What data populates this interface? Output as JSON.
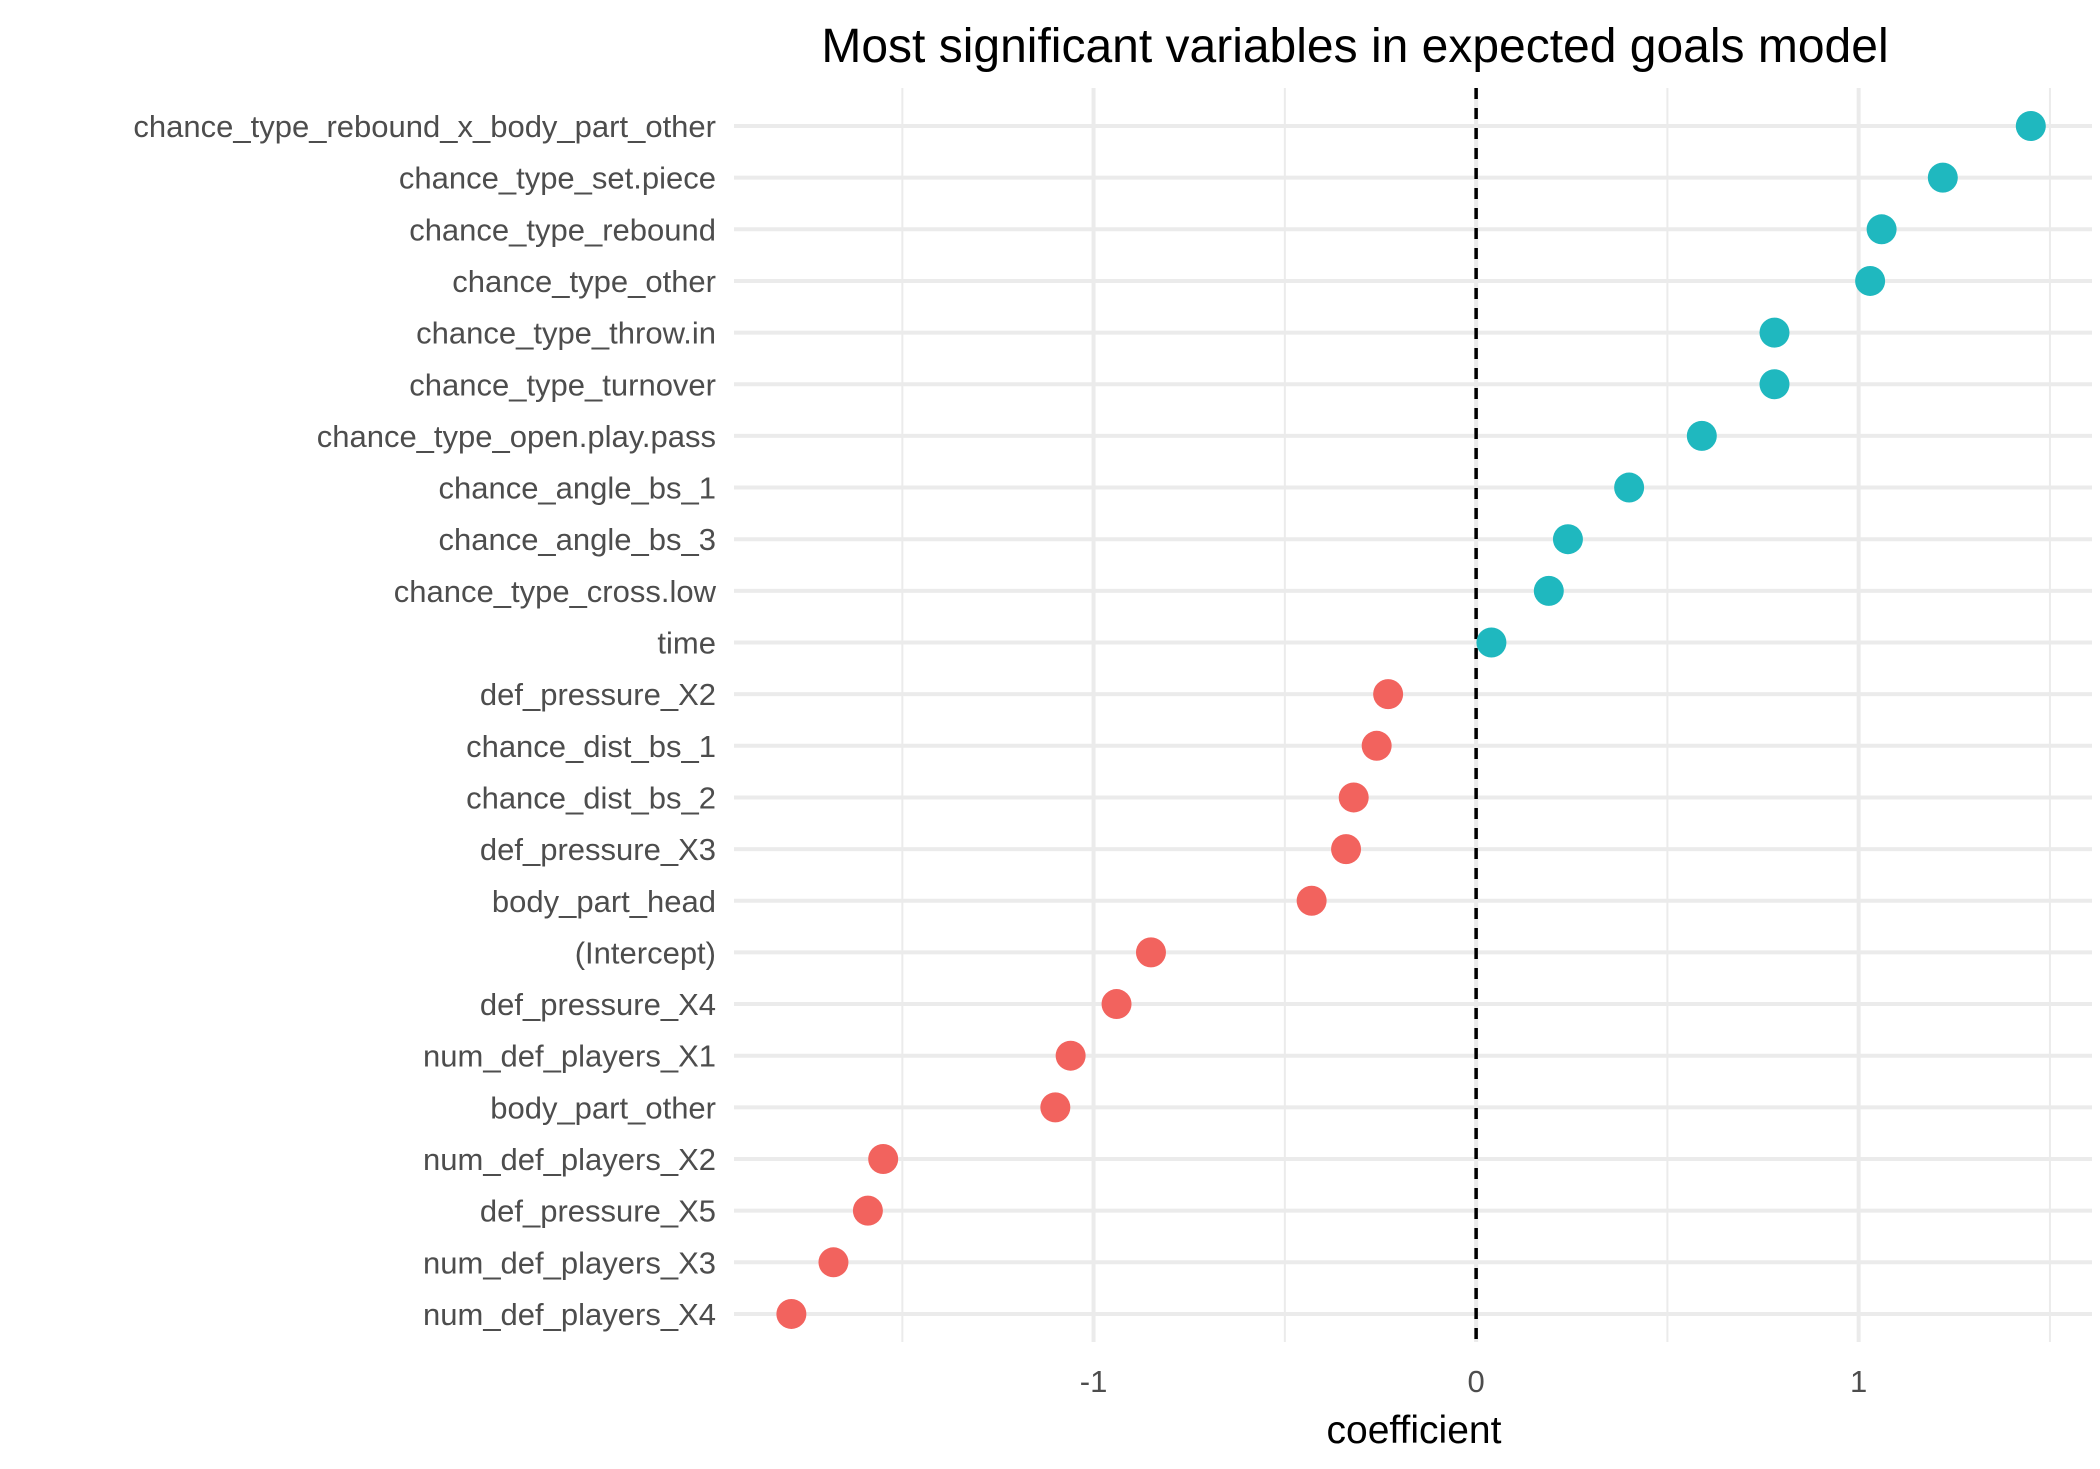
{
  "chart_data": {
    "type": "scatter",
    "title": "Most significant variables in expected goals model",
    "xlabel": "coefficient",
    "ylabel": "",
    "xlim": [
      -1.94,
      1.61
    ],
    "x_ticks": [
      -1,
      0,
      1
    ],
    "x_tick_labels": [
      "-1",
      "0",
      "1"
    ],
    "reference_line": {
      "x": 0,
      "style": "dashed"
    },
    "grid": true,
    "legend": "none",
    "colors": {
      "positive": "#1fb8bf",
      "negative": "#f2635e"
    },
    "points": [
      {
        "label": "chance_type_rebound_x_body_part_other",
        "value": 1.45
      },
      {
        "label": "chance_type_set.piece",
        "value": 1.22
      },
      {
        "label": "chance_type_rebound",
        "value": 1.06
      },
      {
        "label": "chance_type_other",
        "value": 1.03
      },
      {
        "label": "chance_type_throw.in",
        "value": 0.78
      },
      {
        "label": "chance_type_turnover",
        "value": 0.78
      },
      {
        "label": "chance_type_open.play.pass",
        "value": 0.59
      },
      {
        "label": "chance_angle_bs_1",
        "value": 0.4
      },
      {
        "label": "chance_angle_bs_3",
        "value": 0.24
      },
      {
        "label": "chance_type_cross.low",
        "value": 0.19
      },
      {
        "label": "time",
        "value": 0.04
      },
      {
        "label": "def_pressure_X2",
        "value": -0.23
      },
      {
        "label": "chance_dist_bs_1",
        "value": -0.26
      },
      {
        "label": "chance_dist_bs_2",
        "value": -0.32
      },
      {
        "label": "def_pressure_X3",
        "value": -0.34
      },
      {
        "label": "body_part_head",
        "value": -0.43
      },
      {
        "label": "(Intercept)",
        "value": -0.85
      },
      {
        "label": "def_pressure_X4",
        "value": -0.94
      },
      {
        "label": "num_def_players_X1",
        "value": -1.06
      },
      {
        "label": "body_part_other",
        "value": -1.1
      },
      {
        "label": "num_def_players_X2",
        "value": -1.55
      },
      {
        "label": "def_pressure_X5",
        "value": -1.59
      },
      {
        "label": "num_def_players_X3",
        "value": -1.68
      },
      {
        "label": "num_def_players_X4",
        "value": -1.79
      }
    ]
  }
}
